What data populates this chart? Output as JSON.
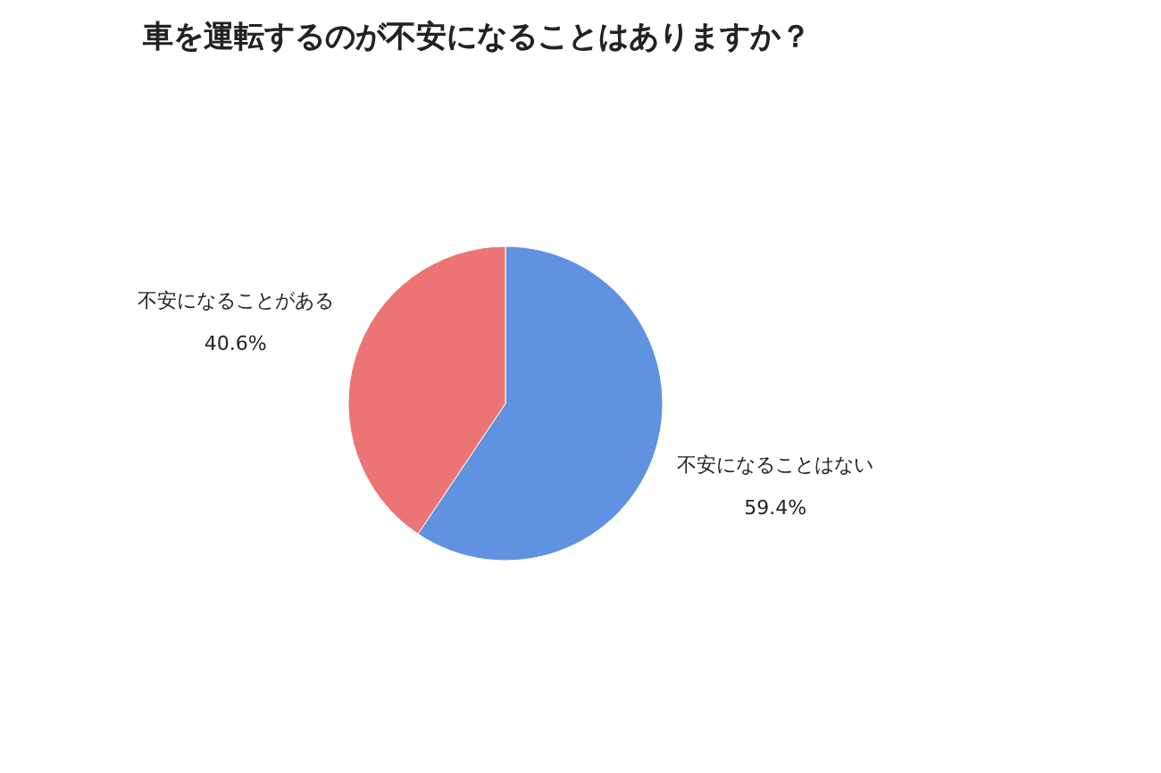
{
  "chart_data": {
    "type": "pie",
    "title": "車を運転するのが不安になることはありますか？",
    "categories": [
      "不安になることはない",
      "不安になることがある"
    ],
    "values": [
      59.4,
      40.6
    ],
    "value_labels": [
      "59.4%",
      "40.6%"
    ],
    "colors": [
      "#5f92e0",
      "#ec7474"
    ]
  }
}
